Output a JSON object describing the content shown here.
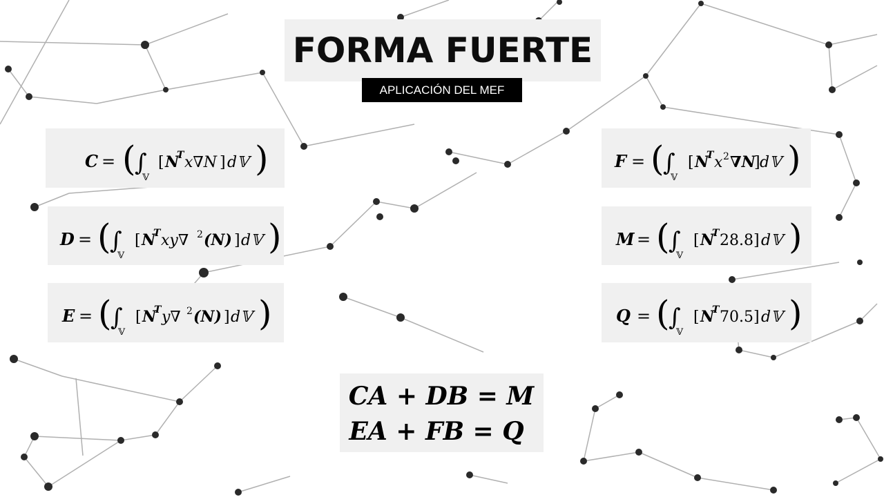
{
  "slide": {
    "title": "FORMA FUERTE",
    "subtitle": "APLICACIÓN DEL MEF"
  },
  "equations": {
    "C": {
      "lhs": "C",
      "integrand_base": "N",
      "integrand_sup": "T",
      "integrand_rest": "x∇N",
      "differential": "d𝕍",
      "domain": "𝕍"
    },
    "D": {
      "lhs": "D",
      "integrand_base": "N",
      "integrand_sup": "T",
      "integrand_rest": "xy∇",
      "power": "2",
      "arg": "(N)",
      "differential": "d𝕍",
      "domain": "𝕍"
    },
    "E": {
      "lhs": "E",
      "integrand_base": "N",
      "integrand_sup": "T",
      "integrand_rest": "y∇",
      "power": "2",
      "arg": "(N)",
      "differential": "d𝕍",
      "domain": "𝕍"
    },
    "F": {
      "lhs": "F",
      "integrand_base": "N",
      "integrand_sup": "T",
      "integrand_rest": "x",
      "power": "2",
      "arg": "∇N",
      "differential": "d𝕍",
      "domain": "𝕍"
    },
    "M": {
      "lhs": "M",
      "integrand_base": "N",
      "integrand_sup": "T",
      "integrand_rest": "28.8",
      "differential": "d𝕍",
      "domain": "𝕍"
    },
    "Q": {
      "lhs": "Q",
      "integrand_base": "N",
      "integrand_sup": "T",
      "integrand_rest": "70.5",
      "differential": "d𝕍",
      "domain": "𝕍"
    }
  },
  "system": {
    "line1": "CA + DB = M",
    "line2": "EA + FB = Q"
  },
  "symbols": {
    "equals": "=",
    "integral": "∫",
    "lbrack": "[",
    "rbrack": "]"
  }
}
